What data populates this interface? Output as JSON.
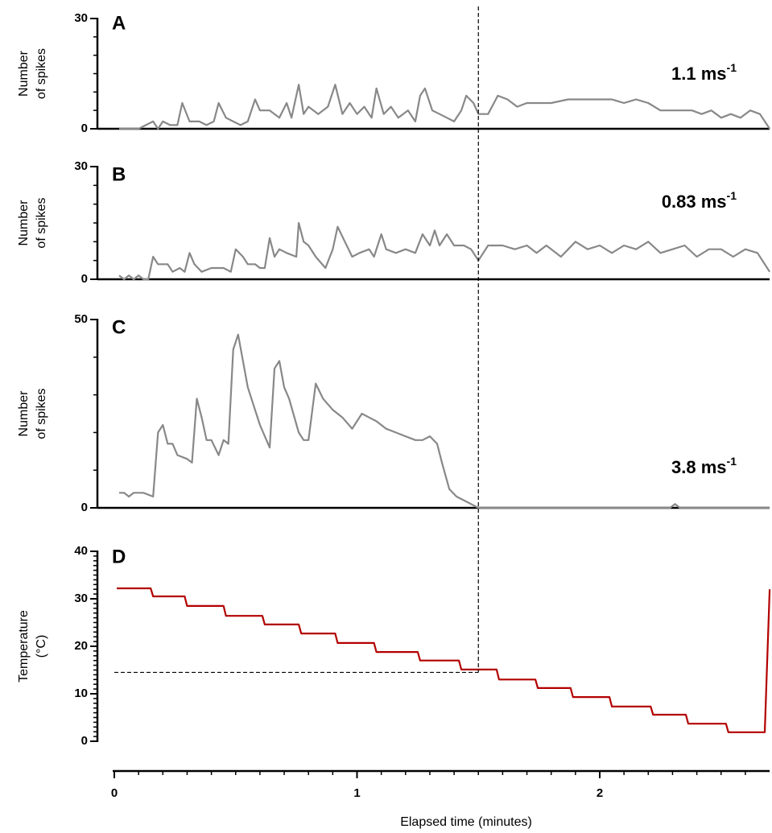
{
  "chart_data": [
    {
      "type": "line",
      "panel": "A",
      "annotation": "1.1 ms",
      "annotation_sup": "-1",
      "ylabel": [
        "Number",
        "of spikes"
      ],
      "ylim": [
        0,
        30
      ],
      "yticks": [
        0,
        30
      ],
      "yminorticks": [
        5,
        10,
        15,
        20,
        25
      ],
      "x": [
        0.02,
        0.1,
        0.13,
        0.16,
        0.18,
        0.2,
        0.23,
        0.26,
        0.28,
        0.31,
        0.35,
        0.38,
        0.41,
        0.43,
        0.46,
        0.49,
        0.52,
        0.55,
        0.58,
        0.6,
        0.64,
        0.68,
        0.71,
        0.73,
        0.76,
        0.78,
        0.8,
        0.84,
        0.88,
        0.91,
        0.94,
        0.97,
        1.0,
        1.03,
        1.06,
        1.08,
        1.11,
        1.14,
        1.17,
        1.21,
        1.24,
        1.26,
        1.28,
        1.31,
        1.34,
        1.37,
        1.4,
        1.43,
        1.45,
        1.48,
        1.5,
        1.54,
        1.58,
        1.62,
        1.66,
        1.7,
        1.75,
        1.8,
        1.87,
        1.95,
        2.05,
        2.1,
        2.15,
        2.2,
        2.25,
        2.3,
        2.38,
        2.42,
        2.46,
        2.5,
        2.54,
        2.58,
        2.62,
        2.66,
        2.7
      ],
      "series": [
        {
          "color": "#888888",
          "values": [
            0,
            0,
            1,
            2,
            0,
            2,
            1,
            1,
            7,
            2,
            2,
            1,
            2,
            7,
            3,
            2,
            1,
            2,
            8,
            5,
            5,
            3,
            7,
            3,
            12,
            4,
            6,
            4,
            6,
            12,
            4,
            7,
            4,
            6,
            3,
            11,
            4,
            6,
            3,
            5,
            2,
            9,
            11,
            5,
            4,
            3,
            2,
            5,
            9,
            7,
            4,
            4,
            9,
            8,
            6,
            7,
            7,
            7,
            8,
            8,
            8,
            7,
            8,
            7,
            5,
            5,
            5,
            4,
            5,
            3,
            4,
            3,
            5,
            4,
            0
          ]
        }
      ]
    },
    {
      "type": "line",
      "panel": "B",
      "annotation": "0.83 ms",
      "annotation_sup": "-1",
      "ylabel": [
        "Number",
        "of spikes"
      ],
      "ylim": [
        0,
        30
      ],
      "yticks": [
        0,
        30
      ],
      "yminorticks": [
        5,
        10,
        15,
        20,
        25
      ],
      "x": [
        0.02,
        0.04,
        0.06,
        0.08,
        0.1,
        0.12,
        0.14,
        0.16,
        0.18,
        0.2,
        0.22,
        0.24,
        0.27,
        0.29,
        0.31,
        0.33,
        0.36,
        0.4,
        0.45,
        0.48,
        0.5,
        0.53,
        0.55,
        0.58,
        0.6,
        0.62,
        0.64,
        0.66,
        0.68,
        0.71,
        0.75,
        0.76,
        0.78,
        0.8,
        0.83,
        0.87,
        0.9,
        0.92,
        0.95,
        0.98,
        1.01,
        1.05,
        1.07,
        1.1,
        1.12,
        1.16,
        1.2,
        1.24,
        1.27,
        1.3,
        1.32,
        1.34,
        1.37,
        1.4,
        1.44,
        1.47,
        1.5,
        1.54,
        1.6,
        1.65,
        1.7,
        1.74,
        1.78,
        1.84,
        1.9,
        1.95,
        2.0,
        2.05,
        2.1,
        2.15,
        2.2,
        2.25,
        2.3,
        2.35,
        2.4,
        2.45,
        2.5,
        2.55,
        2.6,
        2.65,
        2.7
      ],
      "series": [
        {
          "color": "#888888",
          "values": [
            1,
            0,
            1,
            0,
            1,
            0,
            0,
            6,
            4,
            4,
            4,
            2,
            3,
            2,
            7,
            4,
            2,
            3,
            3,
            2,
            8,
            6,
            4,
            4,
            3,
            3,
            11,
            6,
            8,
            7,
            6,
            15,
            10,
            9,
            6,
            3,
            8,
            14,
            10,
            6,
            7,
            8,
            6,
            12,
            8,
            7,
            8,
            7,
            12,
            9,
            13,
            9,
            12,
            9,
            9,
            8,
            5,
            9,
            9,
            8,
            9,
            7,
            9,
            6,
            10,
            8,
            9,
            7,
            9,
            8,
            10,
            7,
            8,
            9,
            6,
            8,
            8,
            6,
            8,
            7,
            2
          ]
        }
      ]
    },
    {
      "type": "line",
      "panel": "C",
      "annotation": "3.8 ms",
      "annotation_sup": "-1",
      "ylabel": [
        "Number",
        "of spikes"
      ],
      "ylim": [
        0,
        50
      ],
      "yticks": [
        0,
        50
      ],
      "yminorticks": [
        10,
        20,
        30,
        40
      ],
      "x": [
        0.02,
        0.04,
        0.06,
        0.08,
        0.12,
        0.16,
        0.18,
        0.2,
        0.22,
        0.24,
        0.26,
        0.3,
        0.32,
        0.34,
        0.36,
        0.38,
        0.4,
        0.43,
        0.45,
        0.47,
        0.49,
        0.51,
        0.55,
        0.6,
        0.64,
        0.66,
        0.68,
        0.7,
        0.72,
        0.76,
        0.78,
        0.8,
        0.83,
        0.86,
        0.9,
        0.94,
        0.98,
        1.0,
        1.02,
        1.05,
        1.08,
        1.12,
        1.16,
        1.2,
        1.24,
        1.27,
        1.3,
        1.33,
        1.35,
        1.38,
        1.41,
        1.44,
        1.47,
        1.5,
        2.0,
        2.29,
        2.31,
        2.33,
        2.7
      ],
      "series": [
        {
          "color": "#888888",
          "values": [
            4,
            4,
            3,
            4,
            4,
            3,
            20,
            22,
            17,
            17,
            14,
            13,
            12,
            29,
            24,
            18,
            18,
            14,
            18,
            17,
            42,
            46,
            32,
            22,
            16,
            37,
            39,
            32,
            29,
            20,
            18,
            18,
            33,
            29,
            26,
            24,
            21,
            23,
            25,
            24,
            23,
            21,
            20,
            19,
            18,
            18,
            19,
            17,
            12,
            5,
            3,
            2,
            1,
            0,
            0,
            0,
            1,
            0,
            0
          ]
        }
      ]
    },
    {
      "type": "line",
      "panel": "D",
      "ylabel": [
        "Temperature",
        "(°C)"
      ],
      "xlabel": "Elapsed time (minutes)",
      "ylim": [
        0,
        40
      ],
      "yticks": [
        0,
        10,
        20,
        30,
        40
      ],
      "yminorticks": [
        1,
        2,
        3,
        4,
        5,
        6,
        7,
        8,
        9,
        11,
        12,
        13,
        14,
        15,
        16,
        17,
        18,
        19,
        21,
        22,
        23,
        24,
        25,
        26,
        27,
        28,
        29,
        31,
        32,
        33,
        34,
        35,
        36,
        37,
        38,
        39
      ],
      "xlim": [
        0,
        2.7
      ],
      "xticks": [
        0,
        1,
        2
      ],
      "xminorticks": [
        0.1,
        0.2,
        0.3,
        0.4,
        0.5,
        0.6,
        0.7,
        0.8,
        0.9,
        1.1,
        1.2,
        1.3,
        1.4,
        1.5,
        1.6,
        1.7,
        1.8,
        1.9,
        2.1,
        2.2,
        2.3,
        2.4,
        2.5,
        2.6
      ],
      "reference_x": 1.5,
      "reference_y": 14.5,
      "x": [
        0.01,
        0.15,
        0.16,
        0.29,
        0.3,
        0.45,
        0.46,
        0.61,
        0.62,
        0.76,
        0.77,
        0.91,
        0.92,
        1.07,
        1.08,
        1.25,
        1.26,
        1.42,
        1.43,
        1.575,
        1.585,
        1.735,
        1.745,
        1.88,
        1.89,
        2.04,
        2.05,
        2.21,
        2.22,
        2.355,
        2.365,
        2.52,
        2.53,
        2.68,
        2.7
      ],
      "series": [
        {
          "color": "#b30000",
          "values": [
            32.2,
            32.2,
            30.5,
            30.5,
            28.5,
            28.5,
            26.4,
            26.4,
            24.6,
            24.6,
            22.7,
            22.7,
            20.7,
            20.7,
            18.8,
            18.8,
            17,
            17,
            15.1,
            15.1,
            13,
            13,
            11.2,
            11.2,
            9.3,
            9.3,
            7.3,
            7.3,
            5.6,
            5.6,
            3.7,
            3.7,
            1.9,
            1.9,
            32
          ]
        }
      ]
    }
  ]
}
